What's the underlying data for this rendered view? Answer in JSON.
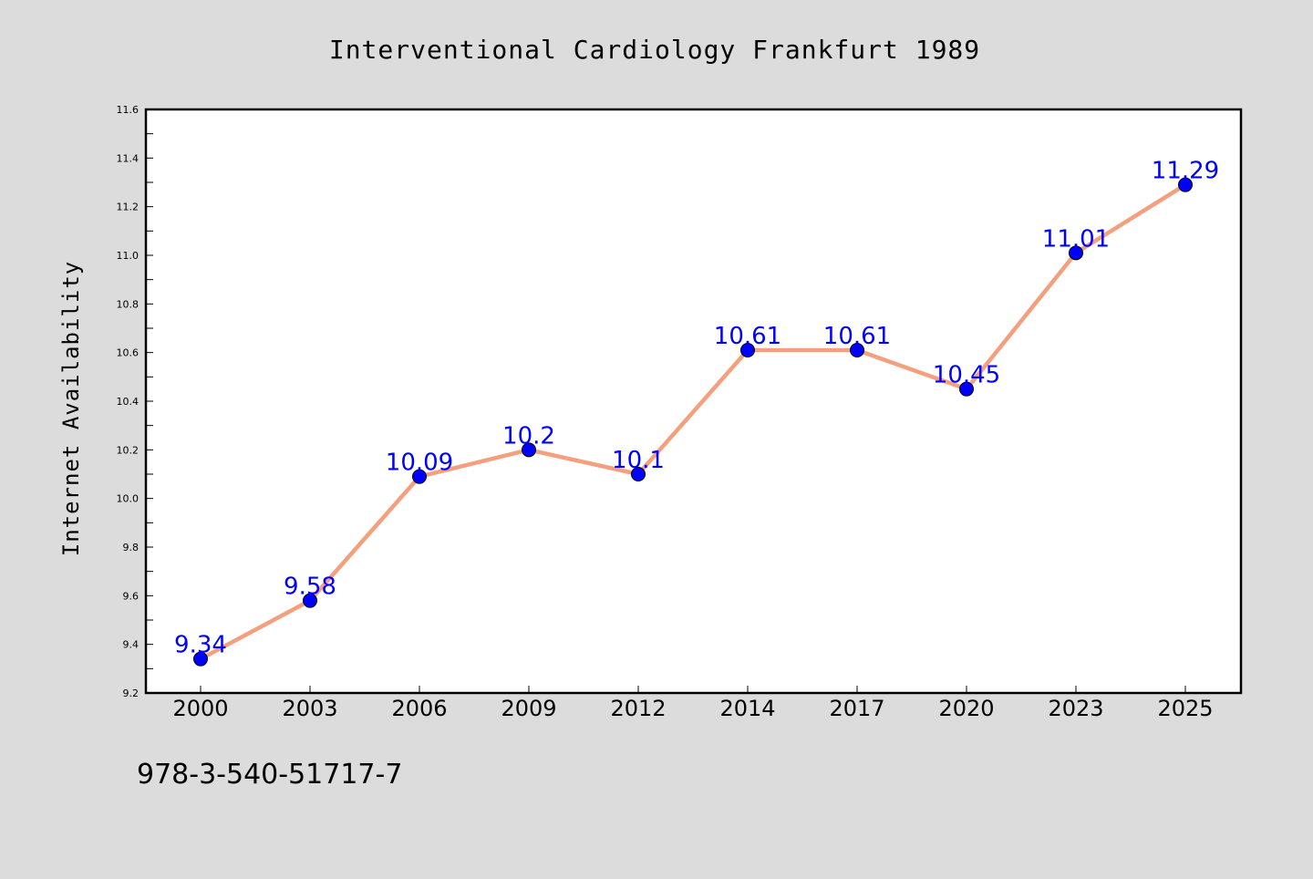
{
  "chart_data": {
    "type": "line",
    "title": "Interventional Cardiology Frankfurt 1989",
    "xlabel": "",
    "ylabel": "Internet Availability",
    "categories": [
      "2000",
      "2003",
      "2006",
      "2009",
      "2012",
      "2014",
      "2017",
      "2020",
      "2023",
      "2025"
    ],
    "series": [
      {
        "values": [
          9.34,
          9.58,
          10.09,
          10.2,
          10.1,
          10.61,
          10.61,
          10.45,
          11.01,
          11.29
        ],
        "labels": [
          "9.34",
          "9.58",
          "10.09",
          "10.2",
          "10.1",
          "10.61",
          "10.61",
          "10.45",
          "11.01",
          "11.29"
        ]
      }
    ],
    "ylim": [
      9.2,
      11.6
    ],
    "yticks": [
      "9.2",
      "9.4",
      "9.6",
      "9.8",
      "10.0",
      "10.2",
      "10.4",
      "10.6",
      "10.8",
      "11.0",
      "11.2",
      "11.4",
      "11.6"
    ],
    "grid": false,
    "legend": "none",
    "colors": {
      "line": "#f4a07f",
      "marker": "#0000ff",
      "label": "#0000ff",
      "plot_bg": "#ffffff",
      "figure_bg": "#dcdcdc"
    }
  },
  "footnote": "978-3-540-51717-7"
}
